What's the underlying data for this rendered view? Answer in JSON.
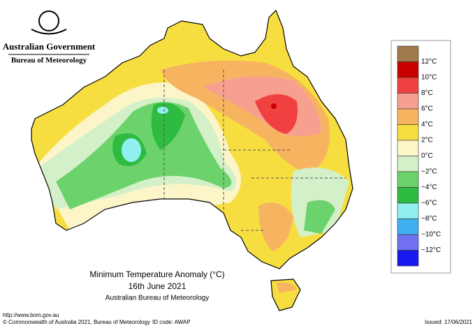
{
  "header": {
    "government": "Australian Government",
    "bureau": "Bureau of Meteorology"
  },
  "legend": {
    "colors": [
      "#a07a4c",
      "#c80000",
      "#f04040",
      "#f7a090",
      "#f7b460",
      "#f7de40",
      "#fbf5c8",
      "#d4f0c8",
      "#6cd26c",
      "#2ebc40",
      "#90f0f0",
      "#40b0f0",
      "#7070f0",
      "#1818f0"
    ],
    "labels": [
      "12°C",
      "10°C",
      "8°C",
      "6°C",
      "4°C",
      "2°C",
      "0°C",
      "−2°C",
      "−4°C",
      "−6°C",
      "−8°C",
      "−10°C",
      "−12°C"
    ]
  },
  "caption": {
    "title": "Minimum Temperature Anomaly (°C)",
    "date": "16th June 2021",
    "source": "Australian Bureau of Meteorology"
  },
  "footer": {
    "url": "http://www.bom.gov.au",
    "copyright": "© Commonwealth of Australia 2021, Bureau of Meteorology",
    "id": "ID code: AWAP",
    "issued": "Issued: 17/06/2021"
  }
}
